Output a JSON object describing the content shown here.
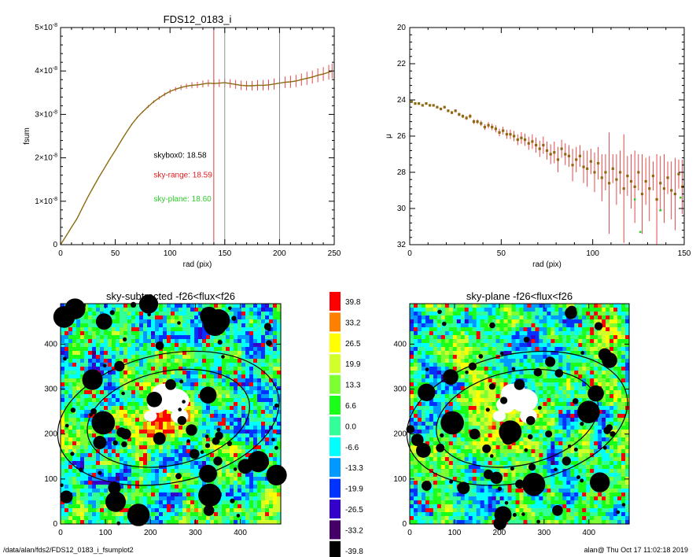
{
  "footer": {
    "path": "/data/alan/fds2/FDS12_0183_i_fsumplot2",
    "user_time": "alan@  Thu Oct 17 11:02:18 2019"
  },
  "colors": {
    "curve_main": "#8b6a10",
    "curve_errors": "#e41a1c",
    "sky_range_text": "#e41a1c",
    "sky_plane_text": "#2ecc2e",
    "vertical_red": "#d01010",
    "vertical_gray": "#777777"
  },
  "chart_data": [
    {
      "id": "fsum",
      "type": "line",
      "title": "FDS12_0183_i",
      "xlabel": "rad (pix)",
      "ylabel": "fsum",
      "xlim": [
        0,
        250
      ],
      "ylim": [
        0,
        5e-08
      ],
      "xticks": [
        0,
        50,
        100,
        150,
        200,
        250
      ],
      "yticks": [
        {
          "value": 0,
          "mantissa": "0",
          "exp": ""
        },
        {
          "value": 1e-08,
          "mantissa": "1×10",
          "exp": "-8"
        },
        {
          "value": 2e-08,
          "mantissa": "2×10",
          "exp": "-8"
        },
        {
          "value": 3e-08,
          "mantissa": "3×10",
          "exp": "-8"
        },
        {
          "value": 4e-08,
          "mantissa": "4×10",
          "exp": "-8"
        },
        {
          "value": 5e-08,
          "mantissa": "5×10",
          "exp": "-8"
        }
      ],
      "series": [
        {
          "x": [
            0,
            5,
            10,
            15,
            20,
            25,
            30,
            35,
            40,
            45,
            50,
            55,
            60,
            65,
            70,
            75,
            80,
            85,
            90,
            95,
            100,
            105,
            110,
            115,
            120,
            125,
            130,
            135,
            140,
            145,
            150,
            155,
            160,
            165,
            170,
            175,
            180,
            185,
            190,
            195,
            200,
            205,
            210,
            215,
            220,
            225,
            230,
            235,
            240,
            245,
            248
          ],
          "y": [
            0,
            2e-09,
            4e-09,
            6e-09,
            8.5e-09,
            1.1e-08,
            1.33e-08,
            1.55e-08,
            1.76e-08,
            1.97e-08,
            2.17e-08,
            2.38e-08,
            2.58e-08,
            2.77e-08,
            2.93e-08,
            3.06e-08,
            3.18e-08,
            3.29e-08,
            3.38e-08,
            3.46e-08,
            3.53e-08,
            3.58e-08,
            3.62e-08,
            3.65e-08,
            3.67e-08,
            3.68e-08,
            3.7e-08,
            3.72e-08,
            3.71e-08,
            3.72e-08,
            3.73e-08,
            3.71e-08,
            3.69e-08,
            3.67e-08,
            3.66e-08,
            3.66e-08,
            3.67e-08,
            3.67e-08,
            3.68e-08,
            3.7e-08,
            3.72e-08,
            3.74e-08,
            3.75e-08,
            3.77e-08,
            3.8e-08,
            3.83e-08,
            3.86e-08,
            3.9e-08,
            3.93e-08,
            3.97e-08,
            4e-08
          ],
          "err": [
            0,
            0,
            0,
            0,
            0,
            0,
            0,
            0,
            0,
            0,
            1e-10,
            1e-10,
            1e-10,
            2e-10,
            2e-10,
            2e-10,
            3e-10,
            3e-10,
            4e-10,
            4e-10,
            5e-10,
            5e-10,
            6e-10,
            6e-10,
            7e-10,
            7e-10,
            8e-10,
            8e-10,
            9e-10,
            9e-10,
            1e-09,
            1e-09,
            1e-09,
            1.1e-09,
            1.1e-09,
            1.1e-09,
            1.2e-09,
            1.2e-09,
            1.2e-09,
            1.3e-09,
            1.3e-09,
            1.3e-09,
            1.4e-09,
            1.4e-09,
            1.4e-09,
            1.5e-09,
            1.5e-09,
            1.6e-09,
            1.6e-09,
            1.7e-09,
            1.7e-09
          ]
        }
      ],
      "vlines": [
        {
          "x": 140,
          "color": "red"
        },
        {
          "x": 150,
          "color": "gray"
        },
        {
          "x": 200,
          "color": "gray"
        }
      ],
      "annotations": [
        {
          "text": "skybox0: 18.58",
          "color": "black",
          "x": 85,
          "y": 2e-08
        },
        {
          "text": "sky-range: 18.59",
          "color": "red",
          "x": 85,
          "y": 1.55e-08
        },
        {
          "text": "sky-plane: 18.60",
          "color": "green",
          "x": 85,
          "y": 1e-08
        }
      ]
    },
    {
      "id": "mu",
      "type": "scatter",
      "title": "",
      "xlabel": "rad (pix)",
      "ylabel": "μ",
      "xlim": [
        0,
        150
      ],
      "ylim": [
        32,
        20
      ],
      "xticks": [
        0,
        50,
        100,
        150
      ],
      "yticks": [
        20,
        22,
        24,
        26,
        28,
        30,
        32
      ],
      "series": [
        {
          "x": [
            1,
            3,
            5,
            7,
            9,
            11,
            13,
            15,
            17,
            19,
            21,
            23,
            25,
            27,
            29,
            31,
            33,
            35,
            37,
            39,
            41,
            43,
            45,
            47,
            49,
            51,
            53,
            55,
            57,
            59,
            61,
            63,
            65,
            67,
            69,
            71,
            73,
            75,
            77,
            79,
            81,
            83,
            85,
            87,
            89,
            91,
            93,
            95,
            97,
            99,
            101,
            103,
            105,
            107,
            109,
            111,
            113,
            115,
            117,
            119,
            121,
            123,
            125,
            127,
            129,
            131,
            133,
            135,
            137,
            139,
            141,
            143,
            145,
            147,
            149
          ],
          "y": [
            24.1,
            24.2,
            24.2,
            24.3,
            24.2,
            24.3,
            24.3,
            24.4,
            24.5,
            24.4,
            24.6,
            24.7,
            24.6,
            24.8,
            24.9,
            25.0,
            24.9,
            25.2,
            25.2,
            25.3,
            25.5,
            25.4,
            25.5,
            25.6,
            25.8,
            25.7,
            25.9,
            25.9,
            26.0,
            26.2,
            26.1,
            26.2,
            26.4,
            26.3,
            26.5,
            26.7,
            26.5,
            26.8,
            27.0,
            26.9,
            27.3,
            26.7,
            27.0,
            27.1,
            27.6,
            27.3,
            27.1,
            27.7,
            27.8,
            27.4,
            28.0,
            27.5,
            28.3,
            28.0,
            28.6,
            27.8,
            28.4,
            28.0,
            28.9,
            28.2,
            28.5,
            28.8,
            28.0,
            29.2,
            28.5,
            28.9,
            28.2,
            29.5,
            28.6,
            28.9,
            28.3,
            29.0,
            29.2,
            28.1,
            28.8
          ],
          "err": [
            0.05,
            0.05,
            0.05,
            0.05,
            0.05,
            0.05,
            0.06,
            0.06,
            0.07,
            0.07,
            0.08,
            0.08,
            0.09,
            0.1,
            0.1,
            0.11,
            0.12,
            0.13,
            0.13,
            0.15,
            0.16,
            0.17,
            0.18,
            0.2,
            0.21,
            0.22,
            0.25,
            0.26,
            0.28,
            0.3,
            0.32,
            0.34,
            0.36,
            0.4,
            0.42,
            0.45,
            0.48,
            0.5,
            0.55,
            0.6,
            0.7,
            0.5,
            0.6,
            0.6,
            0.9,
            0.7,
            0.6,
            0.9,
            1.0,
            0.7,
            1.1,
            0.9,
            1.3,
            1.0,
            2.8,
            0.8,
            1.4,
            1.2,
            3.0,
            1.1,
            1.5,
            2.0,
            1.0,
            2.2,
            1.3,
            1.8,
            0.8,
            2.5,
            1.5,
            1.9,
            0.9,
            1.6,
            2.0,
            0.8,
            1.5
          ]
        }
      ],
      "extra_green": [
        {
          "x": 123,
          "y": 29.5
        },
        {
          "x": 126,
          "y": 31.3
        },
        {
          "x": 137,
          "y": 30.1
        },
        {
          "x": 148,
          "y": 29.4
        }
      ]
    },
    {
      "id": "map-left",
      "type": "heatmap",
      "title": "sky-subtracted -f26<flux<f26",
      "xlim": [
        0,
        490
      ],
      "ylim": [
        0,
        490
      ],
      "xticks": [
        0,
        100,
        200,
        300,
        400
      ],
      "yticks": [
        0,
        100,
        200,
        300,
        400
      ],
      "seed": 17
    },
    {
      "id": "map-right",
      "type": "heatmap",
      "title": "sky-plane -f26<flux<f26",
      "xlim": [
        0,
        490
      ],
      "ylim": [
        0,
        490
      ],
      "xticks": [
        0,
        100,
        200,
        300,
        400
      ],
      "yticks": [
        0,
        100,
        200,
        300,
        400
      ],
      "seed": 29
    },
    {
      "id": "colorbar",
      "type": "table",
      "levels": [
        {
          "label": "39.8",
          "color": "#ff0000"
        },
        {
          "label": "33.2",
          "color": "#ff8000"
        },
        {
          "label": "26.5",
          "color": "#ffff00"
        },
        {
          "label": "19.9",
          "color": "#d2ff2a"
        },
        {
          "label": "13.3",
          "color": "#7dff33"
        },
        {
          "label": "6.6",
          "color": "#1aff1a"
        },
        {
          "label": "0.0",
          "color": "#33ff99"
        },
        {
          "label": "-6.6",
          "color": "#00ffff"
        },
        {
          "label": "-13.3",
          "color": "#0099ff"
        },
        {
          "label": "-19.9",
          "color": "#0033ff"
        },
        {
          "label": "-26.5",
          "color": "#3300cc"
        },
        {
          "label": "-33.2",
          "color": "#440066"
        },
        {
          "label": "-39.8",
          "color": "#000000"
        }
      ]
    }
  ]
}
